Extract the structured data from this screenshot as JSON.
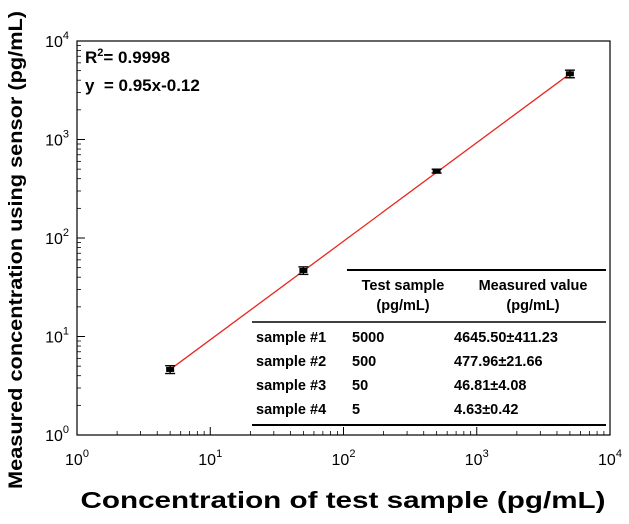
{
  "chart_data": {
    "type": "scatter",
    "x_scale": "log",
    "y_scale": "log",
    "xlim": [
      1,
      10000
    ],
    "ylim": [
      1,
      10000
    ],
    "xlabel": "Concentration of test sample (pg/mL)",
    "ylabel": "Measured concentration using sensor (pg/mL)",
    "x_tick_base": "10",
    "x_tick_exponents": [
      "0",
      "1",
      "2",
      "3",
      "4"
    ],
    "y_tick_base": "10",
    "y_tick_exponents": [
      "0",
      "1",
      "2",
      "3",
      "4"
    ],
    "points": [
      {
        "x": 5,
        "y": 4.63,
        "err": 0.42
      },
      {
        "x": 50,
        "y": 46.81,
        "err": 4.08
      },
      {
        "x": 500,
        "y": 477.96,
        "err": 21.66
      },
      {
        "x": 5000,
        "y": 4645.5,
        "err": 411.23
      }
    ],
    "fit_line": {
      "x_start": 5,
      "x_end": 5000,
      "color": "#e8271f"
    },
    "marker_color": "#000000",
    "annotations": {
      "r2_label": "R",
      "r2_sup": "2",
      "r2_value": "= 0.9998",
      "equation": "y  = 0.95x-0.12"
    },
    "table": {
      "headers": [
        {
          "line1": "Test sample",
          "line2": "(pg/mL)"
        },
        {
          "line1": "Measured value",
          "line2": "(pg/mL)"
        }
      ],
      "rows": [
        {
          "name": "sample #1",
          "test": "5000",
          "measured": "4645.50±411.23"
        },
        {
          "name": "sample #2",
          "test": "500",
          "measured": "477.96±21.66"
        },
        {
          "name": "sample #3",
          "test": "50",
          "measured": "46.81±4.08"
        },
        {
          "name": "sample #4",
          "test": "5",
          "measured": "4.63±0.42"
        }
      ]
    }
  }
}
